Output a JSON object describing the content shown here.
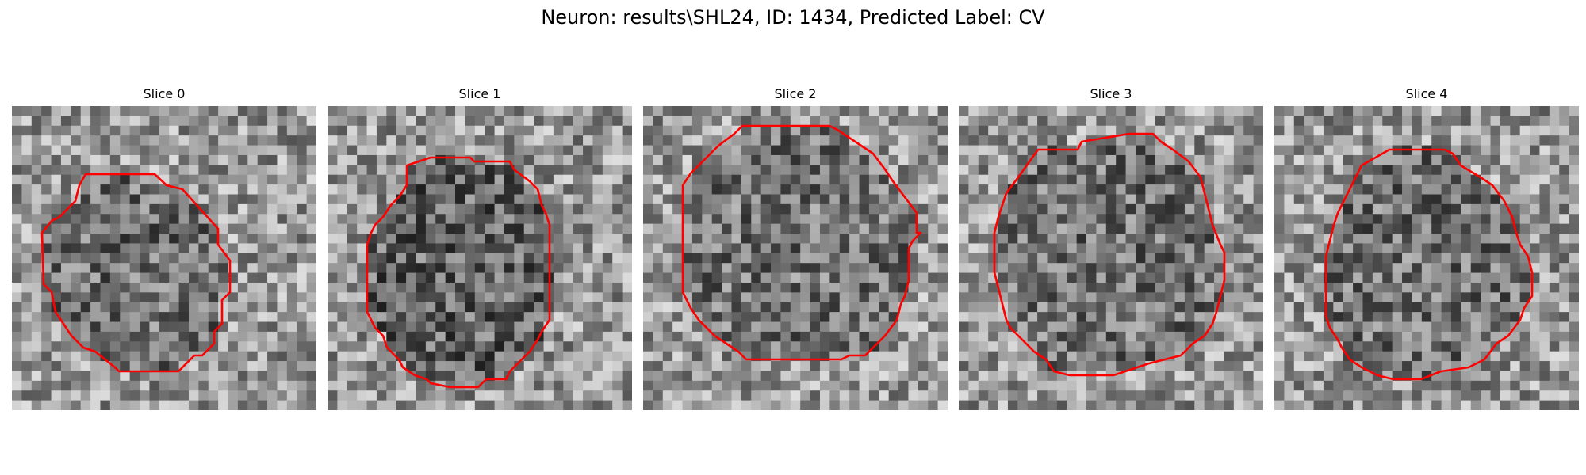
{
  "figure": {
    "title": "Neuron: results\\SHL24, ID: 1434, Predicted Label: CV"
  },
  "slices": [
    {
      "title": "Slice 0",
      "seed": 11,
      "dark_center": 0.35
    },
    {
      "title": "Slice 1",
      "seed": 23,
      "dark_center": 0.6
    },
    {
      "title": "Slice 2",
      "seed": 37,
      "dark_center": 0.25
    },
    {
      "title": "Slice 3",
      "seed": 51,
      "dark_center": 0.3
    },
    {
      "title": "Slice 4",
      "seed": 67,
      "dark_center": 0.3
    }
  ],
  "style": {
    "contour_color": "#ff0000",
    "colormap": "gray"
  }
}
